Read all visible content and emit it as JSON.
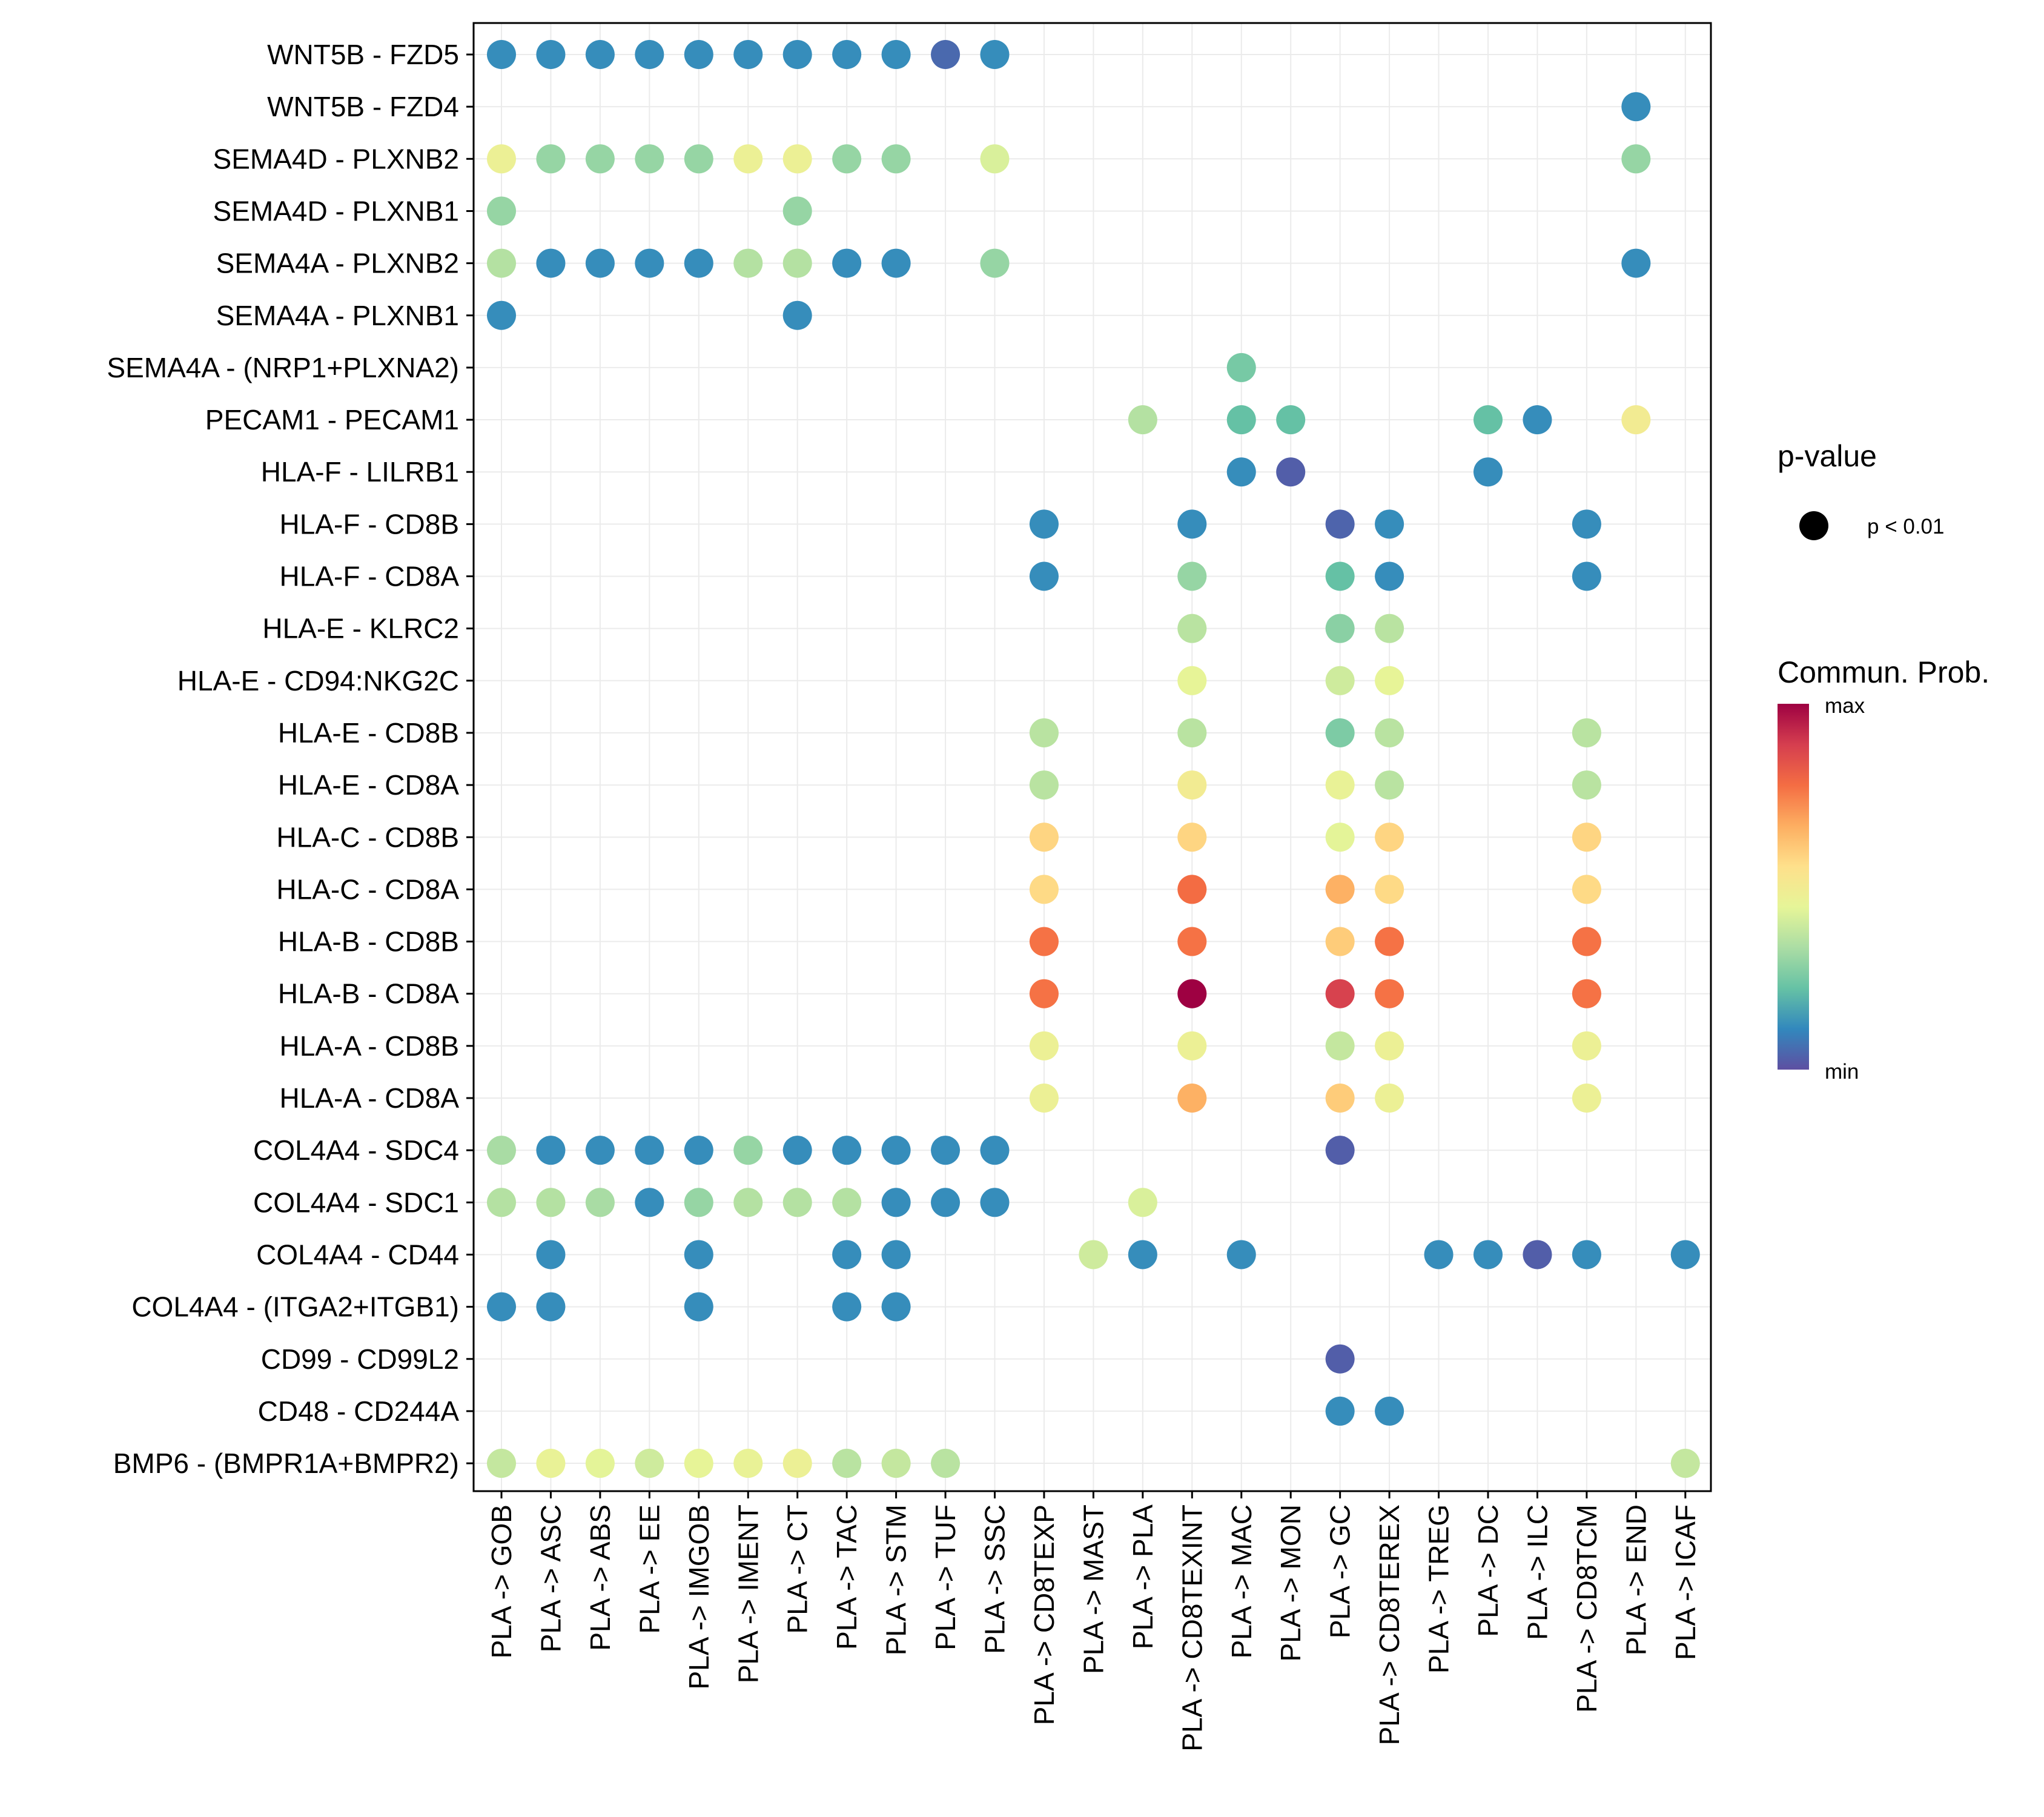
{
  "chart_data": {
    "type": "dot",
    "title": "",
    "xlabel": "",
    "ylabel": "",
    "categories_x": [
      "PLA -> GOB",
      "PLA -> ASC",
      "PLA -> ABS",
      "PLA -> EE",
      "PLA -> IMGOB",
      "PLA -> IMENT",
      "PLA -> CT",
      "PLA -> TAC",
      "PLA -> STM",
      "PLA -> TUF",
      "PLA -> SSC",
      "PLA -> CD8TEXP",
      "PLA -> MAST",
      "PLA -> PLA",
      "PLA -> CD8TEXINT",
      "PLA -> MAC",
      "PLA -> MON",
      "PLA -> GC",
      "PLA -> CD8TEREX",
      "PLA -> TREG",
      "PLA -> DC",
      "PLA -> ILC",
      "PLA -> CD8TCM",
      "PLA -> END",
      "PLA -> ICAF"
    ],
    "categories_y": [
      "WNT5B - FZD5",
      "WNT5B - FZD4",
      "SEMA4D - PLXNB2",
      "SEMA4D - PLXNB1",
      "SEMA4A - PLXNB2",
      "SEMA4A - PLXNB1",
      "SEMA4A - (NRP1+PLXNA2)",
      "PECAM1 - PECAM1",
      "HLA-F - LILRB1",
      "HLA-F - CD8B",
      "HLA-F - CD8A",
      "HLA-E - KLRC2",
      "HLA-E - CD94:NKG2C",
      "HLA-E - CD8B",
      "HLA-E - CD8A",
      "HLA-C - CD8B",
      "HLA-C - CD8A",
      "HLA-B - CD8B",
      "HLA-B - CD8A",
      "HLA-A - CD8B",
      "HLA-A - CD8A",
      "COL4A4 - SDC4",
      "COL4A4 - SDC1",
      "COL4A4 - CD44",
      "COL4A4 - (ITGA2+ITGB1)",
      "CD99 - CD99L2",
      "CD48 - CD244A",
      "BMP6 - (BMPR1A+BMPR2)"
    ],
    "value_scale": "normalized communication probability (0 = min, 1 = max)",
    "points": [
      {
        "x": "PLA -> GOB",
        "y": "WNT5B - FZD5",
        "v": 0.12
      },
      {
        "x": "PLA -> ASC",
        "y": "WNT5B - FZD5",
        "v": 0.12
      },
      {
        "x": "PLA -> ABS",
        "y": "WNT5B - FZD5",
        "v": 0.12
      },
      {
        "x": "PLA -> EE",
        "y": "WNT5B - FZD5",
        "v": 0.12
      },
      {
        "x": "PLA -> IMGOB",
        "y": "WNT5B - FZD5",
        "v": 0.12
      },
      {
        "x": "PLA -> IMENT",
        "y": "WNT5B - FZD5",
        "v": 0.12
      },
      {
        "x": "PLA -> CT",
        "y": "WNT5B - FZD5",
        "v": 0.12
      },
      {
        "x": "PLA -> TAC",
        "y": "WNT5B - FZD5",
        "v": 0.12
      },
      {
        "x": "PLA -> STM",
        "y": "WNT5B - FZD5",
        "v": 0.12
      },
      {
        "x": "PLA -> TUF",
        "y": "WNT5B - FZD5",
        "v": 0.05
      },
      {
        "x": "PLA -> SSC",
        "y": "WNT5B - FZD5",
        "v": 0.12
      },
      {
        "x": "PLA -> END",
        "y": "WNT5B - FZD4",
        "v": 0.12
      },
      {
        "x": "PLA -> GOB",
        "y": "SEMA4D - PLXNB2",
        "v": 0.47
      },
      {
        "x": "PLA -> ASC",
        "y": "SEMA4D - PLXNB2",
        "v": 0.3
      },
      {
        "x": "PLA -> ABS",
        "y": "SEMA4D - PLXNB2",
        "v": 0.3
      },
      {
        "x": "PLA -> EE",
        "y": "SEMA4D - PLXNB2",
        "v": 0.3
      },
      {
        "x": "PLA -> IMGOB",
        "y": "SEMA4D - PLXNB2",
        "v": 0.3
      },
      {
        "x": "PLA -> IMENT",
        "y": "SEMA4D - PLXNB2",
        "v": 0.47
      },
      {
        "x": "PLA -> CT",
        "y": "SEMA4D - PLXNB2",
        "v": 0.47
      },
      {
        "x": "PLA -> TAC",
        "y": "SEMA4D - PLXNB2",
        "v": 0.3
      },
      {
        "x": "PLA -> STM",
        "y": "SEMA4D - PLXNB2",
        "v": 0.3
      },
      {
        "x": "PLA -> SSC",
        "y": "SEMA4D - PLXNB2",
        "v": 0.42
      },
      {
        "x": "PLA -> END",
        "y": "SEMA4D - PLXNB2",
        "v": 0.3
      },
      {
        "x": "PLA -> GOB",
        "y": "SEMA4D - PLXNB1",
        "v": 0.3
      },
      {
        "x": "PLA -> CT",
        "y": "SEMA4D - PLXNB1",
        "v": 0.3
      },
      {
        "x": "PLA -> GOB",
        "y": "SEMA4A - PLXNB2",
        "v": 0.35
      },
      {
        "x": "PLA -> ASC",
        "y": "SEMA4A - PLXNB2",
        "v": 0.12
      },
      {
        "x": "PLA -> ABS",
        "y": "SEMA4A - PLXNB2",
        "v": 0.12
      },
      {
        "x": "PLA -> EE",
        "y": "SEMA4A - PLXNB2",
        "v": 0.12
      },
      {
        "x": "PLA -> IMGOB",
        "y": "SEMA4A - PLXNB2",
        "v": 0.12
      },
      {
        "x": "PLA -> IMENT",
        "y": "SEMA4A - PLXNB2",
        "v": 0.35
      },
      {
        "x": "PLA -> CT",
        "y": "SEMA4A - PLXNB2",
        "v": 0.35
      },
      {
        "x": "PLA -> TAC",
        "y": "SEMA4A - PLXNB2",
        "v": 0.12
      },
      {
        "x": "PLA -> STM",
        "y": "SEMA4A - PLXNB2",
        "v": 0.12
      },
      {
        "x": "PLA -> SSC",
        "y": "SEMA4A - PLXNB2",
        "v": 0.3
      },
      {
        "x": "PLA -> END",
        "y": "SEMA4A - PLXNB2",
        "v": 0.12
      },
      {
        "x": "PLA -> GOB",
        "y": "SEMA4A - PLXNB1",
        "v": 0.12
      },
      {
        "x": "PLA -> CT",
        "y": "SEMA4A - PLXNB1",
        "v": 0.12
      },
      {
        "x": "PLA -> MAC",
        "y": "SEMA4A - (NRP1+PLXNA2)",
        "v": 0.25
      },
      {
        "x": "PLA -> PLA",
        "y": "PECAM1 - PECAM1",
        "v": 0.35
      },
      {
        "x": "PLA -> MAC",
        "y": "PECAM1 - PECAM1",
        "v": 0.22
      },
      {
        "x": "PLA -> MON",
        "y": "PECAM1 - PECAM1",
        "v": 0.22
      },
      {
        "x": "PLA -> DC",
        "y": "PECAM1 - PECAM1",
        "v": 0.22
      },
      {
        "x": "PLA -> ILC",
        "y": "PECAM1 - PECAM1",
        "v": 0.12
      },
      {
        "x": "PLA -> END",
        "y": "PECAM1 - PECAM1",
        "v": 0.5
      },
      {
        "x": "PLA -> MAC",
        "y": "HLA-F - LILRB1",
        "v": 0.12
      },
      {
        "x": "PLA -> MON",
        "y": "HLA-F - LILRB1",
        "v": 0.03
      },
      {
        "x": "PLA -> DC",
        "y": "HLA-F - LILRB1",
        "v": 0.12
      },
      {
        "x": "PLA -> CD8TEXP",
        "y": "HLA-F - CD8B",
        "v": 0.12
      },
      {
        "x": "PLA -> CD8TEXINT",
        "y": "HLA-F - CD8B",
        "v": 0.12
      },
      {
        "x": "PLA -> GC",
        "y": "HLA-F - CD8B",
        "v": 0.04
      },
      {
        "x": "PLA -> CD8TEREX",
        "y": "HLA-F - CD8B",
        "v": 0.12
      },
      {
        "x": "PLA -> CD8TCM",
        "y": "HLA-F - CD8B",
        "v": 0.12
      },
      {
        "x": "PLA -> CD8TEXP",
        "y": "HLA-F - CD8A",
        "v": 0.12
      },
      {
        "x": "PLA -> CD8TEXINT",
        "y": "HLA-F - CD8A",
        "v": 0.3
      },
      {
        "x": "PLA -> GC",
        "y": "HLA-F - CD8A",
        "v": 0.22
      },
      {
        "x": "PLA -> CD8TEREX",
        "y": "HLA-F - CD8A",
        "v": 0.12
      },
      {
        "x": "PLA -> CD8TCM",
        "y": "HLA-F - CD8A",
        "v": 0.12
      },
      {
        "x": "PLA -> CD8TEXINT",
        "y": "HLA-E - KLRC2",
        "v": 0.36
      },
      {
        "x": "PLA -> GC",
        "y": "HLA-E - KLRC2",
        "v": 0.28
      },
      {
        "x": "PLA -> CD8TEREX",
        "y": "HLA-E - KLRC2",
        "v": 0.36
      },
      {
        "x": "PLA -> CD8TEXINT",
        "y": "HLA-E - CD94:NKG2C",
        "v": 0.45
      },
      {
        "x": "PLA -> GC",
        "y": "HLA-E - CD94:NKG2C",
        "v": 0.4
      },
      {
        "x": "PLA -> CD8TEREX",
        "y": "HLA-E - CD94:NKG2C",
        "v": 0.45
      },
      {
        "x": "PLA -> CD8TEXP",
        "y": "HLA-E - CD8B",
        "v": 0.36
      },
      {
        "x": "PLA -> CD8TEXINT",
        "y": "HLA-E - CD8B",
        "v": 0.36
      },
      {
        "x": "PLA -> GC",
        "y": "HLA-E - CD8B",
        "v": 0.26
      },
      {
        "x": "PLA -> CD8TEREX",
        "y": "HLA-E - CD8B",
        "v": 0.36
      },
      {
        "x": "PLA -> CD8TCM",
        "y": "HLA-E - CD8B",
        "v": 0.36
      },
      {
        "x": "PLA -> CD8TEXP",
        "y": "HLA-E - CD8A",
        "v": 0.36
      },
      {
        "x": "PLA -> CD8TEXINT",
        "y": "HLA-E - CD8A",
        "v": 0.5
      },
      {
        "x": "PLA -> GC",
        "y": "HLA-E - CD8A",
        "v": 0.46
      },
      {
        "x": "PLA -> CD8TEREX",
        "y": "HLA-E - CD8A",
        "v": 0.36
      },
      {
        "x": "PLA -> CD8TCM",
        "y": "HLA-E - CD8A",
        "v": 0.36
      },
      {
        "x": "PLA -> CD8TEXP",
        "y": "HLA-C - CD8B",
        "v": 0.58
      },
      {
        "x": "PLA -> CD8TEXINT",
        "y": "HLA-C - CD8B",
        "v": 0.58
      },
      {
        "x": "PLA -> GC",
        "y": "HLA-C - CD8B",
        "v": 0.44
      },
      {
        "x": "PLA -> CD8TEREX",
        "y": "HLA-C - CD8B",
        "v": 0.58
      },
      {
        "x": "PLA -> CD8TCM",
        "y": "HLA-C - CD8B",
        "v": 0.58
      },
      {
        "x": "PLA -> CD8TEXP",
        "y": "HLA-C - CD8A",
        "v": 0.57
      },
      {
        "x": "PLA -> CD8TEXINT",
        "y": "HLA-C - CD8A",
        "v": 0.78
      },
      {
        "x": "PLA -> GC",
        "y": "HLA-C - CD8A",
        "v": 0.66
      },
      {
        "x": "PLA -> CD8TEREX",
        "y": "HLA-C - CD8A",
        "v": 0.57
      },
      {
        "x": "PLA -> CD8TCM",
        "y": "HLA-C - CD8A",
        "v": 0.57
      },
      {
        "x": "PLA -> CD8TEXP",
        "y": "HLA-B - CD8B",
        "v": 0.77
      },
      {
        "x": "PLA -> CD8TEXINT",
        "y": "HLA-B - CD8B",
        "v": 0.77
      },
      {
        "x": "PLA -> GC",
        "y": "HLA-B - CD8B",
        "v": 0.6
      },
      {
        "x": "PLA -> CD8TEREX",
        "y": "HLA-B - CD8B",
        "v": 0.77
      },
      {
        "x": "PLA -> CD8TCM",
        "y": "HLA-B - CD8B",
        "v": 0.77
      },
      {
        "x": "PLA -> CD8TEXP",
        "y": "HLA-B - CD8A",
        "v": 0.77
      },
      {
        "x": "PLA -> CD8TEXINT",
        "y": "HLA-B - CD8A",
        "v": 1.0
      },
      {
        "x": "PLA -> GC",
        "y": "HLA-B - CD8A",
        "v": 0.88
      },
      {
        "x": "PLA -> CD8TEREX",
        "y": "HLA-B - CD8A",
        "v": 0.77
      },
      {
        "x": "PLA -> CD8TCM",
        "y": "HLA-B - CD8A",
        "v": 0.77
      },
      {
        "x": "PLA -> CD8TEXP",
        "y": "HLA-A - CD8B",
        "v": 0.47
      },
      {
        "x": "PLA -> CD8TEXINT",
        "y": "HLA-A - CD8B",
        "v": 0.47
      },
      {
        "x": "PLA -> GC",
        "y": "HLA-A - CD8B",
        "v": 0.38
      },
      {
        "x": "PLA -> CD8TEREX",
        "y": "HLA-A - CD8B",
        "v": 0.47
      },
      {
        "x": "PLA -> CD8TCM",
        "y": "HLA-A - CD8B",
        "v": 0.47
      },
      {
        "x": "PLA -> CD8TEXP",
        "y": "HLA-A - CD8A",
        "v": 0.47
      },
      {
        "x": "PLA -> CD8TEXINT",
        "y": "HLA-A - CD8A",
        "v": 0.66
      },
      {
        "x": "PLA -> GC",
        "y": "HLA-A - CD8A",
        "v": 0.6
      },
      {
        "x": "PLA -> CD8TEREX",
        "y": "HLA-A - CD8A",
        "v": 0.47
      },
      {
        "x": "PLA -> CD8TCM",
        "y": "HLA-A - CD8A",
        "v": 0.47
      },
      {
        "x": "PLA -> GOB",
        "y": "COL4A4 - SDC4",
        "v": 0.33
      },
      {
        "x": "PLA -> ASC",
        "y": "COL4A4 - SDC4",
        "v": 0.12
      },
      {
        "x": "PLA -> ABS",
        "y": "COL4A4 - SDC4",
        "v": 0.12
      },
      {
        "x": "PLA -> EE",
        "y": "COL4A4 - SDC4",
        "v": 0.12
      },
      {
        "x": "PLA -> IMGOB",
        "y": "COL4A4 - SDC4",
        "v": 0.12
      },
      {
        "x": "PLA -> IMENT",
        "y": "COL4A4 - SDC4",
        "v": 0.3
      },
      {
        "x": "PLA -> CT",
        "y": "COL4A4 - SDC4",
        "v": 0.12
      },
      {
        "x": "PLA -> TAC",
        "y": "COL4A4 - SDC4",
        "v": 0.12
      },
      {
        "x": "PLA -> STM",
        "y": "COL4A4 - SDC4",
        "v": 0.12
      },
      {
        "x": "PLA -> TUF",
        "y": "COL4A4 - SDC4",
        "v": 0.12
      },
      {
        "x": "PLA -> SSC",
        "y": "COL4A4 - SDC4",
        "v": 0.12
      },
      {
        "x": "PLA -> GC",
        "y": "COL4A4 - SDC4",
        "v": 0.03
      },
      {
        "x": "PLA -> GOB",
        "y": "COL4A4 - SDC1",
        "v": 0.35
      },
      {
        "x": "PLA -> ASC",
        "y": "COL4A4 - SDC1",
        "v": 0.35
      },
      {
        "x": "PLA -> ABS",
        "y": "COL4A4 - SDC1",
        "v": 0.33
      },
      {
        "x": "PLA -> EE",
        "y": "COL4A4 - SDC1",
        "v": 0.12
      },
      {
        "x": "PLA -> IMGOB",
        "y": "COL4A4 - SDC1",
        "v": 0.3
      },
      {
        "x": "PLA -> IMENT",
        "y": "COL4A4 - SDC1",
        "v": 0.35
      },
      {
        "x": "PLA -> CT",
        "y": "COL4A4 - SDC1",
        "v": 0.35
      },
      {
        "x": "PLA -> TAC",
        "y": "COL4A4 - SDC1",
        "v": 0.35
      },
      {
        "x": "PLA -> STM",
        "y": "COL4A4 - SDC1",
        "v": 0.12
      },
      {
        "x": "PLA -> TUF",
        "y": "COL4A4 - SDC1",
        "v": 0.12
      },
      {
        "x": "PLA -> SSC",
        "y": "COL4A4 - SDC1",
        "v": 0.12
      },
      {
        "x": "PLA -> PLA",
        "y": "COL4A4 - SDC1",
        "v": 0.42
      },
      {
        "x": "PLA -> ASC",
        "y": "COL4A4 - CD44",
        "v": 0.12
      },
      {
        "x": "PLA -> IMGOB",
        "y": "COL4A4 - CD44",
        "v": 0.12
      },
      {
        "x": "PLA -> TAC",
        "y": "COL4A4 - CD44",
        "v": 0.12
      },
      {
        "x": "PLA -> STM",
        "y": "COL4A4 - CD44",
        "v": 0.12
      },
      {
        "x": "PLA -> MAST",
        "y": "COL4A4 - CD44",
        "v": 0.4
      },
      {
        "x": "PLA -> PLA",
        "y": "COL4A4 - CD44",
        "v": 0.12
      },
      {
        "x": "PLA -> MAC",
        "y": "COL4A4 - CD44",
        "v": 0.12
      },
      {
        "x": "PLA -> TREG",
        "y": "COL4A4 - CD44",
        "v": 0.12
      },
      {
        "x": "PLA -> DC",
        "y": "COL4A4 - CD44",
        "v": 0.12
      },
      {
        "x": "PLA -> ILC",
        "y": "COL4A4 - CD44",
        "v": 0.03
      },
      {
        "x": "PLA -> CD8TCM",
        "y": "COL4A4 - CD44",
        "v": 0.12
      },
      {
        "x": "PLA -> ICAF",
        "y": "COL4A4 - CD44",
        "v": 0.12
      },
      {
        "x": "PLA -> GOB",
        "y": "COL4A4 - (ITGA2+ITGB1)",
        "v": 0.12
      },
      {
        "x": "PLA -> ASC",
        "y": "COL4A4 - (ITGA2+ITGB1)",
        "v": 0.12
      },
      {
        "x": "PLA -> IMGOB",
        "y": "COL4A4 - (ITGA2+ITGB1)",
        "v": 0.12
      },
      {
        "x": "PLA -> TAC",
        "y": "COL4A4 - (ITGA2+ITGB1)",
        "v": 0.12
      },
      {
        "x": "PLA -> STM",
        "y": "COL4A4 - (ITGA2+ITGB1)",
        "v": 0.12
      },
      {
        "x": "PLA -> GC",
        "y": "CD99 - CD99L2",
        "v": 0.03
      },
      {
        "x": "PLA -> GC",
        "y": "CD48 - CD244A",
        "v": 0.12
      },
      {
        "x": "PLA -> CD8TEREX",
        "y": "CD48 - CD244A",
        "v": 0.12
      },
      {
        "x": "PLA -> GOB",
        "y": "BMP6 - (BMPR1A+BMPR2)",
        "v": 0.38
      },
      {
        "x": "PLA -> ASC",
        "y": "BMP6 - (BMPR1A+BMPR2)",
        "v": 0.46
      },
      {
        "x": "PLA -> ABS",
        "y": "BMP6 - (BMPR1A+BMPR2)",
        "v": 0.44
      },
      {
        "x": "PLA -> EE",
        "y": "BMP6 - (BMPR1A+BMPR2)",
        "v": 0.4
      },
      {
        "x": "PLA -> IMGOB",
        "y": "BMP6 - (BMPR1A+BMPR2)",
        "v": 0.45
      },
      {
        "x": "PLA -> IMENT",
        "y": "BMP6 - (BMPR1A+BMPR2)",
        "v": 0.46
      },
      {
        "x": "PLA -> CT",
        "y": "BMP6 - (BMPR1A+BMPR2)",
        "v": 0.47
      },
      {
        "x": "PLA -> TAC",
        "y": "BMP6 - (BMPR1A+BMPR2)",
        "v": 0.36
      },
      {
        "x": "PLA -> STM",
        "y": "BMP6 - (BMPR1A+BMPR2)",
        "v": 0.38
      },
      {
        "x": "PLA -> TUF",
        "y": "BMP6 - (BMPR1A+BMPR2)",
        "v": 0.36
      },
      {
        "x": "PLA -> ICAF",
        "y": "BMP6 - (BMPR1A+BMPR2)",
        "v": 0.38
      }
    ],
    "legend": {
      "pvalue_title": "p-value",
      "pvalue_label": "p < 0.01",
      "color_title": "Commun. Prob.",
      "color_max_label": "max",
      "color_min_label": "min",
      "placement": "right"
    },
    "colors": {
      "palette_min_to_max": [
        "#5E4FA2",
        "#3288BD",
        "#66C2A5",
        "#ABDDA4",
        "#E6F598",
        "#FEE08B",
        "#FDAE61",
        "#F46D43",
        "#D53E4F",
        "#9E0142"
      ],
      "grid": "#EBEBEB",
      "frame": "#000000"
    },
    "grid": true
  }
}
